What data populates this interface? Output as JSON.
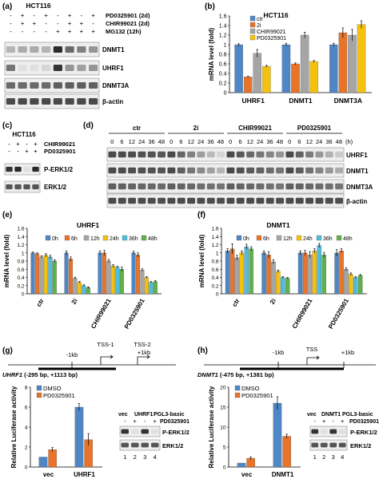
{
  "panels": {
    "a": {
      "label": "(a)",
      "cell_line": "HCT116",
      "treatments": [
        {
          "signs": [
            "-",
            "+",
            "-",
            "+",
            "-",
            "+",
            "-",
            "+"
          ],
          "label": "PD0325901 (2d)"
        },
        {
          "signs": [
            "-",
            "+",
            "+",
            "-",
            "-",
            "+",
            "+",
            "-"
          ],
          "label": "CHIR99021 (2d)"
        },
        {
          "signs": [
            "-",
            "-",
            "-",
            "-",
            "+",
            "+",
            "+",
            "+"
          ],
          "label": "MG132 (12h)"
        }
      ],
      "blots": [
        "DNMT1",
        "UHRF1",
        "DNMT3A",
        "β-actin"
      ]
    },
    "b": {
      "label": "(b)",
      "title": "HCT116",
      "ylabel": "mRNA level (fold)",
      "chart_data": {
        "type": "bar",
        "categories": [
          "UHRF1",
          "DNMT1",
          "DNMT3A"
        ],
        "series": [
          {
            "name": "ctr",
            "values": [
              1.0,
              1.0,
              1.0
            ],
            "errors": [
              0.02,
              0.03,
              0.03
            ]
          },
          {
            "name": "2i",
            "values": [
              0.33,
              0.6,
              1.25
            ],
            "errors": [
              0.01,
              0.02,
              0.1
            ]
          },
          {
            "name": "CHIR99021",
            "values": [
              0.82,
              1.2,
              1.2
            ],
            "errors": [
              0.08,
              0.06,
              0.12
            ]
          },
          {
            "name": "PD0325901",
            "values": [
              0.55,
              0.65,
              1.42
            ],
            "errors": [
              0.02,
              0.02,
              0.08
            ]
          }
        ],
        "ylim": [
          0,
          1.6
        ],
        "yticks": [
          "0",
          "0.2",
          "0.4",
          "0.6",
          "0.8",
          "1",
          "1.2",
          "1.4",
          "1.6"
        ],
        "colors": [
          "#4f86c6",
          "#e8742a",
          "#a5a5a5",
          "#f4c20d"
        ],
        "legend": "top-left"
      }
    },
    "c": {
      "label": "(c)",
      "cell_line": "HCT116",
      "treatments": [
        {
          "signs": [
            "-",
            "+",
            "-",
            "+"
          ],
          "label": "CHIR99021"
        },
        {
          "signs": [
            "-",
            "-",
            "+",
            "+"
          ],
          "label": "PD0325901"
        }
      ],
      "blots": [
        "P-ERK1/2",
        "ERK1/2"
      ]
    },
    "d": {
      "label": "(d)",
      "groups": [
        "ctr",
        "2i",
        "CHIR99021",
        "PD0325901"
      ],
      "timepoints": [
        "0",
        "6",
        "12",
        "24",
        "36",
        "48",
        "0",
        "6",
        "12",
        "24",
        "36",
        "48",
        "0",
        "6",
        "12",
        "24",
        "36",
        "48",
        "0",
        "6",
        "12",
        "24",
        "36",
        "48"
      ],
      "unit": "(h)",
      "blots": [
        "UHRF1",
        "DNMT1",
        "DNMT3A",
        "β-actin"
      ]
    },
    "e": {
      "label": "(e)",
      "title": "UHRF1",
      "ylabel": "mRNA level (fold)",
      "chart_data": {
        "type": "bar",
        "categories": [
          "ctr",
          "2i",
          "CHIR99021",
          "PD0325901"
        ],
        "series": [
          {
            "name": "0h",
            "values": [
              1.0,
              1.0,
              1.0,
              1.0
            ],
            "errors": [
              0.02,
              0.05,
              0.05,
              0.04
            ]
          },
          {
            "name": "6h",
            "values": [
              0.98,
              0.85,
              1.0,
              0.95
            ],
            "errors": [
              0.02,
              0.05,
              0.06,
              0.05
            ]
          },
          {
            "name": "12h",
            "values": [
              0.9,
              0.38,
              0.8,
              0.58
            ],
            "errors": [
              0.03,
              0.02,
              0.04,
              0.03
            ]
          },
          {
            "name": "24h",
            "values": [
              0.94,
              0.28,
              0.68,
              0.4
            ],
            "errors": [
              0.04,
              0.02,
              0.03,
              0.02
            ]
          },
          {
            "name": "36h",
            "values": [
              0.9,
              0.2,
              0.65,
              0.28
            ],
            "errors": [
              0.04,
              0.02,
              0.02,
              0.02
            ]
          },
          {
            "name": "48h",
            "values": [
              0.8,
              0.15,
              0.6,
              0.3
            ],
            "errors": [
              0.03,
              0.02,
              0.05,
              0.02
            ]
          }
        ],
        "ylim": [
          0,
          1.6
        ],
        "yticks": [
          "0",
          "0.2",
          "0.4",
          "0.6",
          "0.8",
          "1",
          "1.2",
          "1.4",
          "1.6"
        ],
        "colors": [
          "#4f86c6",
          "#e8742a",
          "#a5a5a5",
          "#f4c20d",
          "#4fbddb",
          "#5fb24a"
        ],
        "legend": "top"
      }
    },
    "f": {
      "label": "(f)",
      "title": "DNMT1",
      "ylabel": "mRNA level (fold)",
      "chart_data": {
        "type": "bar",
        "categories": [
          "ctr",
          "2i",
          "CHIR99021",
          "PD0325901"
        ],
        "series": [
          {
            "name": "0h",
            "values": [
              1.05,
              1.0,
              1.0,
              1.0
            ],
            "errors": [
              0.05,
              0.05,
              0.05,
              0.08
            ]
          },
          {
            "name": "6h",
            "values": [
              1.1,
              0.95,
              1.0,
              1.05
            ],
            "errors": [
              0.12,
              0.08,
              0.06,
              0.05
            ]
          },
          {
            "name": "12h",
            "values": [
              0.88,
              0.78,
              0.95,
              0.6
            ],
            "errors": [
              0.06,
              0.05,
              0.08,
              0.04
            ]
          },
          {
            "name": "24h",
            "values": [
              1.0,
              0.55,
              1.05,
              0.48
            ],
            "errors": [
              0.05,
              0.03,
              0.05,
              0.03
            ]
          },
          {
            "name": "36h",
            "values": [
              1.15,
              0.4,
              1.18,
              0.4
            ],
            "errors": [
              0.06,
              0.02,
              0.05,
              0.02
            ]
          },
          {
            "name": "48h",
            "values": [
              1.1,
              0.38,
              0.95,
              0.45
            ],
            "errors": [
              0.05,
              0.02,
              0.06,
              0.02
            ]
          }
        ],
        "ylim": [
          0,
          1.6
        ],
        "yticks": [
          "0",
          "0.2",
          "0.4",
          "0.6",
          "0.8",
          "1",
          "1.2",
          "1.4",
          "1.6"
        ],
        "colors": [
          "#4f86c6",
          "#e8742a",
          "#a5a5a5",
          "#f4c20d",
          "#4fbddb",
          "#5fb24a"
        ],
        "legend": "top"
      }
    },
    "g": {
      "label": "(g)",
      "construct": "UHRF1 (-295 bp, +1113 bp)",
      "construct_gene": "UHRF1",
      "construct_range": " (-295 bp, +1113 bp)",
      "marks": [
        "-1kb",
        "TSS-1",
        "TSS-2",
        "+1kb"
      ],
      "ylabel": "Relative Luciferase activity",
      "chart_data": {
        "type": "bar",
        "categories": [
          "vec",
          "UHRF1"
        ],
        "series": [
          {
            "name": "DMSO",
            "values": [
              1.0,
              6.0
            ],
            "errors": [
              0.0,
              0.35
            ]
          },
          {
            "name": "PD0325901",
            "values": [
              1.75,
              2.75
            ],
            "errors": [
              0.2,
              0.6
            ]
          }
        ],
        "ylim": [
          0,
          8
        ],
        "yticks": [
          "0",
          "2",
          "4",
          "6",
          "8"
        ],
        "colors": [
          "#4f86c6",
          "#e8742a"
        ],
        "legend": "top-left"
      },
      "blot": {
        "header": [
          "vec",
          "UHRF1",
          "PGL3-basic"
        ],
        "signs": [
          "-",
          "+",
          "-",
          "+"
        ],
        "treatment": "PD0325901",
        "rows": [
          "P-ERK1/2",
          "ERK1/2"
        ],
        "lanes": [
          "1",
          "2",
          "3",
          "4"
        ]
      }
    },
    "h": {
      "label": "(h)",
      "construct": "DNMT1 (-475 bp, +1381 bp)",
      "construct_gene": "DNMT1",
      "construct_range": " (-475 bp, +1381 bp)",
      "marks": [
        "-1kb",
        "TSS",
        "+1kb"
      ],
      "ylabel": "Relative Luciferase activity",
      "chart_data": {
        "type": "bar",
        "categories": [
          "vec",
          "DNMT1"
        ],
        "series": [
          {
            "name": "DMSO",
            "values": [
              1.0,
              16.0
            ],
            "errors": [
              0.0,
              1.6
            ]
          },
          {
            "name": "PD0325901",
            "values": [
              2.2,
              7.7
            ],
            "errors": [
              0.35,
              0.5
            ]
          }
        ],
        "ylim": [
          0,
          20
        ],
        "yticks": [
          "0",
          "5",
          "10",
          "15",
          "20"
        ],
        "colors": [
          "#4f86c6",
          "#e8742a"
        ],
        "legend": "top-left"
      },
      "blot": {
        "header": [
          "vec",
          "DNMT1",
          "PGL3-basic"
        ],
        "signs": [
          "-",
          "+",
          "-",
          "+"
        ],
        "treatment": "PD0325901",
        "rows": [
          "P-ERK1/2",
          "ERK1/2"
        ],
        "lanes": [
          "1",
          "2",
          "3",
          "4"
        ]
      }
    }
  }
}
